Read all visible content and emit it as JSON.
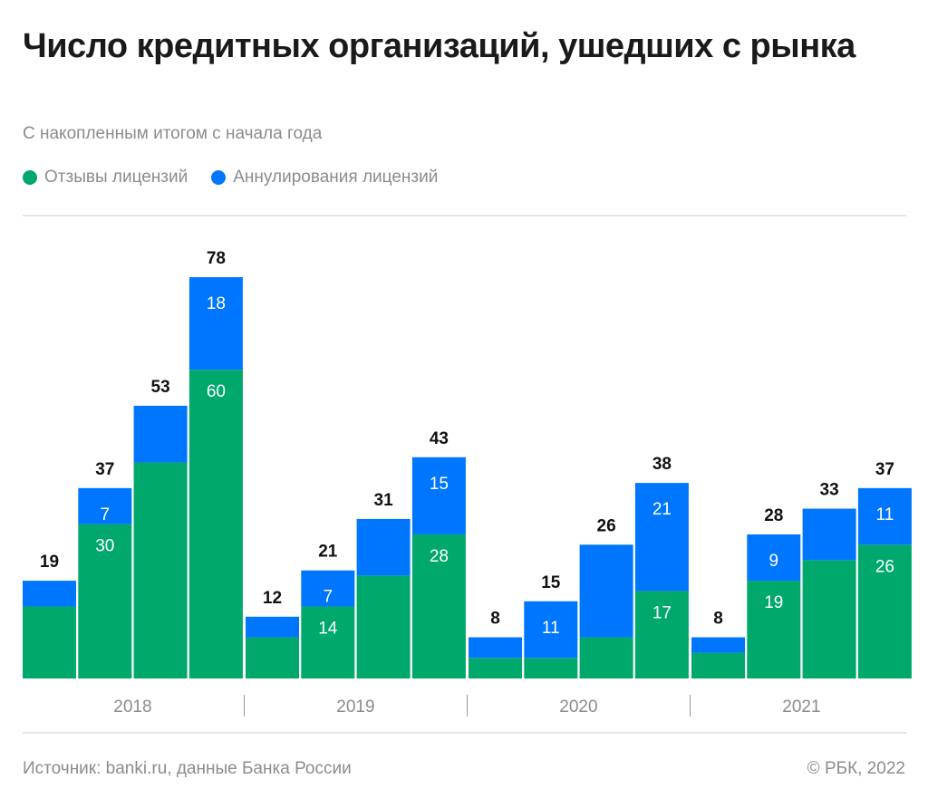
{
  "header": {
    "title": "Число кредитных организаций, ушедших с рынка",
    "subtitle": "С накопленным итогом с начала года"
  },
  "legend": [
    {
      "label": "Отзывы лицензий",
      "color": "#00a86b"
    },
    {
      "label": "Аннулирования лицензий",
      "color": "#0076ff"
    }
  ],
  "footer": {
    "source": "Источник: banki.ru, данные Банка России",
    "copyright": "© РБК, 2022"
  },
  "chart_data": {
    "type": "bar",
    "stacked": true,
    "title": "Число кредитных организаций, ушедших с рынка",
    "subtitle": "С накопленным итогом с начала года",
    "xlabel": "",
    "ylabel": "",
    "ylim": [
      0,
      78
    ],
    "grid": false,
    "legend_position": "top-left",
    "groups": [
      "2018",
      "2019",
      "2020",
      "2021"
    ],
    "categories": [
      "2018-1",
      "2018-2",
      "2018-3",
      "2018-4",
      "2019-1",
      "2019-2",
      "2019-3",
      "2019-4",
      "2020-1",
      "2020-2",
      "2020-3",
      "2020-4",
      "2021-1",
      "2021-2",
      "2021-3",
      "2021-4"
    ],
    "series": [
      {
        "name": "Отзывы лицензий",
        "color": "#00a86b",
        "values": [
          14,
          30,
          42,
          60,
          8,
          14,
          20,
          28,
          4,
          4,
          8,
          17,
          5,
          19,
          23,
          26
        ],
        "labels": [
          "",
          "30",
          "",
          "60",
          "",
          "14",
          "",
          "28",
          "",
          "",
          "",
          "17",
          "",
          "19",
          "",
          "26"
        ]
      },
      {
        "name": "Аннулирования лицензий",
        "color": "#0076ff",
        "values": [
          5,
          7,
          11,
          18,
          4,
          7,
          11,
          15,
          4,
          11,
          18,
          21,
          3,
          9,
          10,
          11
        ],
        "labels": [
          "",
          "7",
          "",
          "18",
          "",
          "7",
          "",
          "15",
          "",
          "11",
          "",
          "21",
          "",
          "9",
          "",
          "11"
        ]
      }
    ],
    "totals": [
      19,
      37,
      53,
      78,
      12,
      21,
      31,
      43,
      8,
      15,
      26,
      38,
      8,
      28,
      33,
      37
    ]
  }
}
